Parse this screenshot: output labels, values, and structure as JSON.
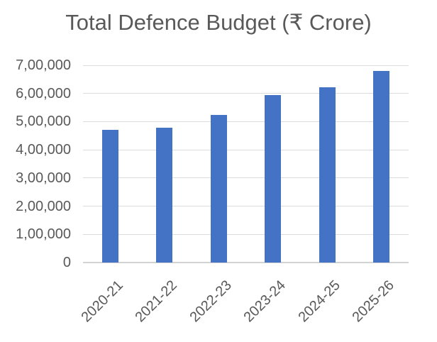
{
  "chart_data": {
    "type": "bar",
    "title": "Total Defence Budget (₹ Crore)",
    "categories": [
      "2020-21",
      "2021-22",
      "2022-23",
      "2023-24",
      "2024-25",
      "2025-26"
    ],
    "values": [
      471000,
      478000,
      525000,
      594000,
      622000,
      681000
    ],
    "xlabel": "",
    "ylabel": "",
    "ylim": [
      0,
      700000
    ],
    "ytick_step": 100000,
    "ytick_labels": [
      "0",
      "1,00,000",
      "2,00,000",
      "3,00,000",
      "4,00,000",
      "5,00,000",
      "6,00,000",
      "7,00,000"
    ],
    "grid": true,
    "legend": false,
    "x_label_rotation_deg": -45,
    "bar_color": "#4472C4",
    "text_color": "#595959",
    "gridline_color": "#DCDCDC",
    "axis_line_color": "#D3D3D3",
    "background_color": "#FFFFFF",
    "number_format": "indian-lakh"
  }
}
